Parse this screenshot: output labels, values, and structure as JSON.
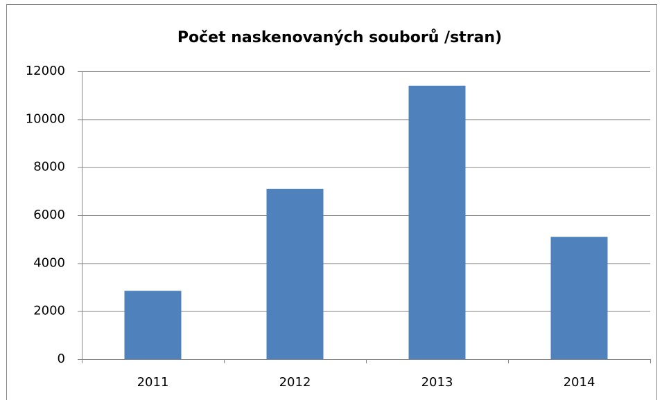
{
  "chart_data": {
    "type": "bar",
    "title": "Počet naskenovaných souborů /stran)",
    "categories": [
      "2011",
      "2012",
      "2013",
      "2014"
    ],
    "values": [
      2850,
      7100,
      11400,
      5100
    ],
    "color": "#4f81bd",
    "ylim": [
      0,
      12000
    ],
    "yticks": [
      0,
      2000,
      4000,
      6000,
      8000,
      10000,
      12000
    ],
    "grid": true
  }
}
